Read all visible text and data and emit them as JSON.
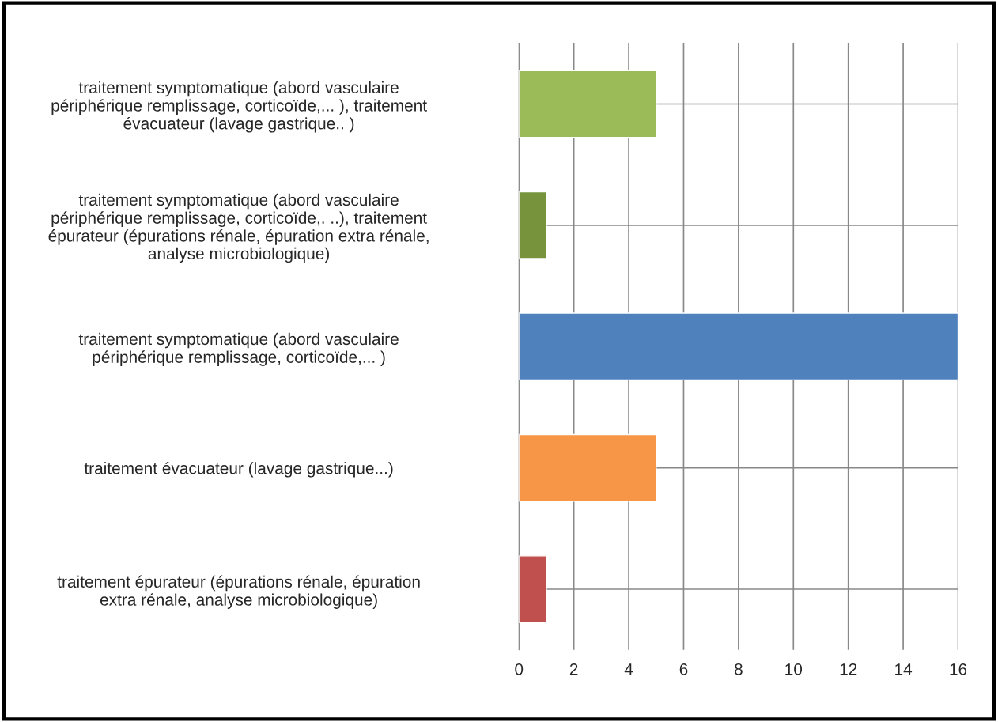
{
  "chart_data": {
    "type": "bar",
    "orientation": "horizontal",
    "categories": [
      "traitement symptomatique (abord vasculaire\npériphérique remplissage, corticoïde,... ), traitement\névacuateur (lavage gastrique.. )",
      "traitement symptomatique (abord vasculaire\npériphérique remplissage, corticoïde,. ..), traitement\népurateur (épurations rénale, épuration extra rénale,\nanalyse microbiologique)",
      "traitement symptomatique (abord vasculaire\npériphérique remplissage, corticoïde,... )",
      "traitement évacuateur (lavage gastrique...)",
      "traitement épurateur (épurations rénale, épuration\nextra rénale, analyse microbiologique)"
    ],
    "values": [
      5,
      1,
      16,
      5,
      1
    ],
    "colors": [
      "#9bbb59",
      "#77933c",
      "#4f81bd",
      "#f79646",
      "#c0504d"
    ],
    "xlim": [
      0,
      16
    ],
    "xticks": [
      0,
      2,
      4,
      6,
      8,
      10,
      12,
      14,
      16
    ],
    "grid": "x"
  }
}
